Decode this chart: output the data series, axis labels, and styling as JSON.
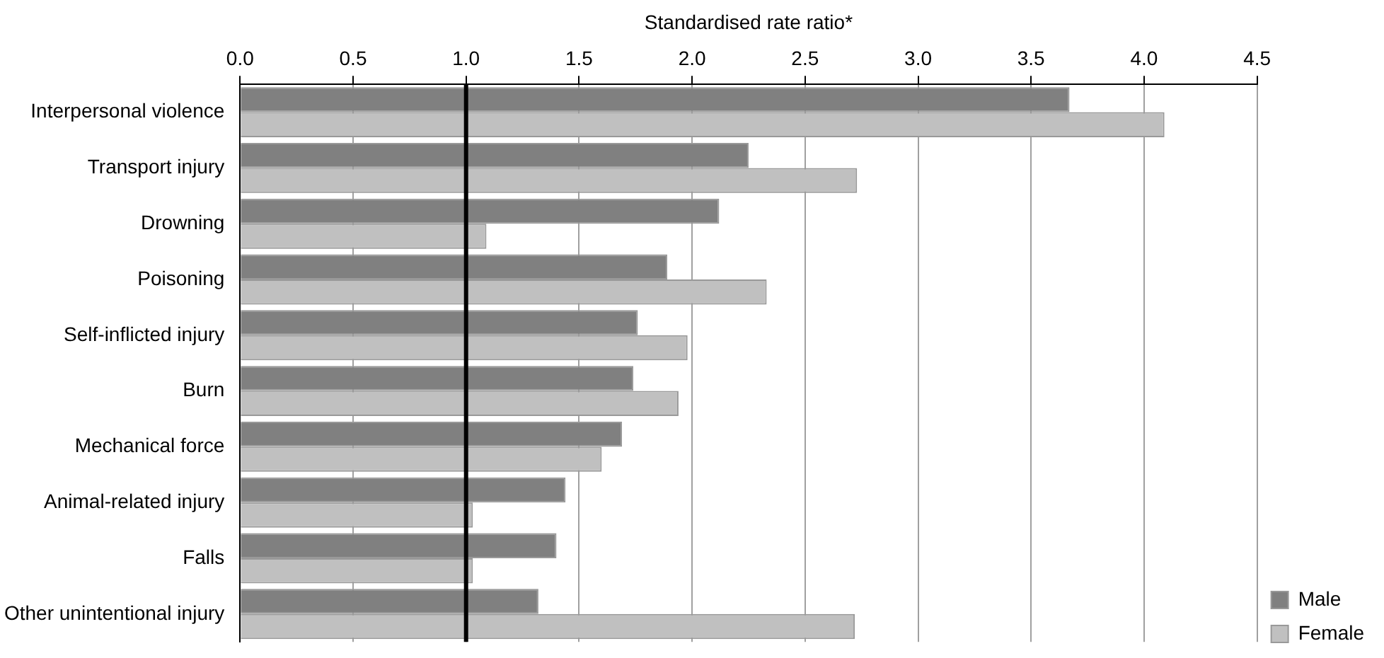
{
  "chart_data": {
    "type": "bar",
    "orientation": "horizontal",
    "xlabel": "Standardised rate ratio*",
    "categories": [
      "Interpersonal violence",
      "Transport injury",
      "Drowning",
      "Poisoning",
      "Self-inflicted injury",
      "Burn",
      "Mechanical force",
      "Animal-related injury",
      "Falls",
      "Other unintentional injury"
    ],
    "series": [
      {
        "name": "Male",
        "color": "#808080",
        "values": [
          3.67,
          2.25,
          2.12,
          1.89,
          1.76,
          1.74,
          1.69,
          1.44,
          1.4,
          1.32
        ]
      },
      {
        "name": "Female",
        "color": "#c0c0c0",
        "values": [
          4.09,
          2.73,
          1.09,
          2.33,
          1.98,
          1.94,
          1.6,
          1.03,
          1.03,
          2.72
        ]
      }
    ],
    "xlim": [
      0,
      4.5
    ],
    "xticks": [
      {
        "value": 0,
        "label": "0.0"
      },
      0.5,
      {
        "value": 1,
        "label": "1.0"
      },
      1.5,
      {
        "value": 2,
        "label": "2.0"
      },
      2.5,
      {
        "value": 3,
        "label": "3.0"
      },
      3.5,
      {
        "value": 4,
        "label": "4.0"
      },
      4.5
    ],
    "ref_lines": [
      {
        "axis": "x",
        "value": 1,
        "color": "#000000"
      }
    ],
    "grid": "x",
    "legend": "bottom right"
  }
}
